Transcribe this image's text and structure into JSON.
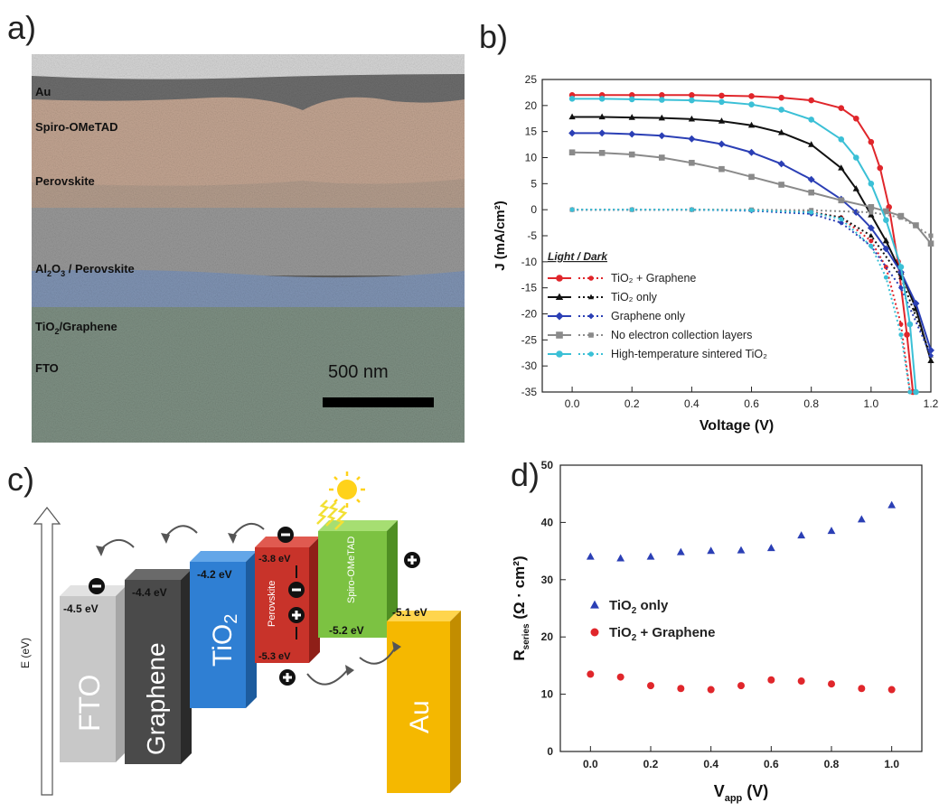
{
  "panels": {
    "a": {
      "label": "a)",
      "layers": [
        {
          "name": "Au"
        },
        {
          "name": "Spiro-OMeTAD"
        },
        {
          "name": "Perovskite"
        },
        {
          "name": "Al",
          "sub1": "2",
          "mid": "O",
          "sub2": "3",
          "rest": " / Perovskite"
        },
        {
          "name": "TiO",
          "sub1": "2",
          "rest": "/Graphene"
        },
        {
          "name": "FTO"
        }
      ],
      "scale_bar": "500 nm"
    },
    "b": {
      "label": "b)"
    },
    "c": {
      "label": "c)",
      "axis_label": "E (eV)",
      "blocks": [
        {
          "name": "FTO",
          "energy": "-4.5 eV",
          "color": "#c8c8c8"
        },
        {
          "name": "Graphene",
          "energy": "-4.4 eV",
          "color": "#4a4a4a"
        },
        {
          "name": "TiO",
          "sub": "2",
          "energy": "-4.2 eV",
          "color": "#2f7fd3"
        },
        {
          "name": "Perovskite",
          "energy_top": "-3.8 eV",
          "energy_bottom": "-5.3 eV",
          "color": "#c8332a"
        },
        {
          "name": "Spiro-OMeTAD",
          "energy": "-5.2 eV",
          "color": "#7cc242"
        },
        {
          "name": "Au",
          "energy": "-5.1 eV",
          "color": "#f5b800"
        }
      ]
    },
    "d": {
      "label": "d)"
    }
  },
  "chart_data": [
    {
      "type": "line",
      "panel": "b",
      "xlabel": "Voltage (V)",
      "ylabel": "J (mA/cm²)",
      "xlim": [
        -0.1,
        1.2
      ],
      "ylim": [
        -35,
        25
      ],
      "xticks": [
        "0.0",
        "0.2",
        "0.4",
        "0.6",
        "0.8",
        "1.0",
        "1.2"
      ],
      "yticks": [
        "25",
        "20",
        "15",
        "10",
        "5",
        "0",
        "-5",
        "-10",
        "-15",
        "-20",
        "-25",
        "-30",
        "-35"
      ],
      "legend_title": "Light / Dark",
      "legend_position": "bottom-left",
      "series": [
        {
          "name": "TiO₂ + Graphene",
          "color": "#e0262b",
          "marker": "circle",
          "light": [
            [
              0,
              22
            ],
            [
              0.1,
              22
            ],
            [
              0.2,
              22
            ],
            [
              0.3,
              22
            ],
            [
              0.4,
              22
            ],
            [
              0.5,
              21.9
            ],
            [
              0.6,
              21.8
            ],
            [
              0.7,
              21.5
            ],
            [
              0.8,
              21
            ],
            [
              0.9,
              19.5
            ],
            [
              0.95,
              17.5
            ],
            [
              1.0,
              13
            ],
            [
              1.03,
              8
            ],
            [
              1.06,
              0.5
            ],
            [
              1.09,
              -10
            ],
            [
              1.12,
              -24
            ],
            [
              1.14,
              -35
            ]
          ],
          "dark": [
            [
              0,
              0
            ],
            [
              0.2,
              0
            ],
            [
              0.4,
              0
            ],
            [
              0.6,
              -0.1
            ],
            [
              0.8,
              -0.4
            ],
            [
              0.9,
              -1.5
            ],
            [
              1.0,
              -6
            ],
            [
              1.05,
              -11
            ],
            [
              1.1,
              -22
            ],
            [
              1.13,
              -35
            ]
          ]
        },
        {
          "name": "TiO₂ only",
          "color": "#111111",
          "marker": "triangle",
          "light": [
            [
              0,
              17.8
            ],
            [
              0.1,
              17.8
            ],
            [
              0.2,
              17.7
            ],
            [
              0.3,
              17.6
            ],
            [
              0.4,
              17.4
            ],
            [
              0.5,
              17
            ],
            [
              0.6,
              16.2
            ],
            [
              0.7,
              14.8
            ],
            [
              0.8,
              12.5
            ],
            [
              0.9,
              8
            ],
            [
              0.95,
              4
            ],
            [
              1.0,
              -1
            ],
            [
              1.05,
              -6
            ],
            [
              1.1,
              -12
            ],
            [
              1.15,
              -19
            ],
            [
              1.2,
              -29
            ]
          ],
          "dark": [
            [
              0,
              0
            ],
            [
              0.2,
              0
            ],
            [
              0.4,
              0
            ],
            [
              0.6,
              -0.1
            ],
            [
              0.8,
              -0.5
            ],
            [
              0.9,
              -1.5
            ],
            [
              1.0,
              -5
            ],
            [
              1.1,
              -13
            ],
            [
              1.2,
              -28
            ]
          ]
        },
        {
          "name": "Graphene only",
          "color": "#2b3fb5",
          "marker": "diamond",
          "light": [
            [
              0,
              14.7
            ],
            [
              0.1,
              14.7
            ],
            [
              0.2,
              14.5
            ],
            [
              0.3,
              14.2
            ],
            [
              0.4,
              13.6
            ],
            [
              0.5,
              12.6
            ],
            [
              0.6,
              11
            ],
            [
              0.7,
              8.8
            ],
            [
              0.8,
              5.8
            ],
            [
              0.9,
              2
            ],
            [
              0.95,
              -0.5
            ],
            [
              1.0,
              -3.5
            ],
            [
              1.05,
              -7.5
            ],
            [
              1.1,
              -12
            ],
            [
              1.15,
              -18
            ],
            [
              1.2,
              -27
            ]
          ],
          "dark": [
            [
              0,
              0
            ],
            [
              0.2,
              0
            ],
            [
              0.4,
              0
            ],
            [
              0.6,
              -0.2
            ],
            [
              0.8,
              -0.8
            ],
            [
              0.9,
              -2.5
            ],
            [
              1.0,
              -7
            ],
            [
              1.1,
              -15
            ],
            [
              1.2,
              -28
            ]
          ]
        },
        {
          "name": "No electron collection layers",
          "color": "#8a8a8a",
          "marker": "square",
          "light": [
            [
              0,
              11
            ],
            [
              0.1,
              10.9
            ],
            [
              0.2,
              10.6
            ],
            [
              0.3,
              10
            ],
            [
              0.4,
              9
            ],
            [
              0.5,
              7.8
            ],
            [
              0.6,
              6.3
            ],
            [
              0.7,
              4.8
            ],
            [
              0.8,
              3.3
            ],
            [
              0.9,
              1.8
            ],
            [
              1.0,
              0.5
            ],
            [
              1.05,
              -0.3
            ],
            [
              1.1,
              -1.2
            ],
            [
              1.15,
              -3
            ],
            [
              1.2,
              -6.5
            ]
          ],
          "dark": [
            [
              0,
              0
            ],
            [
              0.2,
              0
            ],
            [
              0.4,
              0
            ],
            [
              0.6,
              0
            ],
            [
              0.8,
              -0.1
            ],
            [
              1.0,
              -0.5
            ],
            [
              1.1,
              -1.5
            ],
            [
              1.2,
              -5
            ]
          ]
        },
        {
          "name": "High-temperature sintered TiO₂",
          "color": "#3bc0d6",
          "marker": "circle",
          "light": [
            [
              0,
              21.3
            ],
            [
              0.1,
              21.3
            ],
            [
              0.2,
              21.2
            ],
            [
              0.3,
              21.1
            ],
            [
              0.4,
              21
            ],
            [
              0.5,
              20.7
            ],
            [
              0.6,
              20.2
            ],
            [
              0.7,
              19.2
            ],
            [
              0.8,
              17.3
            ],
            [
              0.9,
              13.5
            ],
            [
              0.95,
              10
            ],
            [
              1.0,
              5
            ],
            [
              1.05,
              -2
            ],
            [
              1.1,
              -11
            ],
            [
              1.13,
              -22
            ],
            [
              1.15,
              -35
            ]
          ],
          "dark": [
            [
              0,
              0
            ],
            [
              0.2,
              0
            ],
            [
              0.4,
              0
            ],
            [
              0.6,
              -0.1
            ],
            [
              0.8,
              -0.5
            ],
            [
              0.9,
              -1.8
            ],
            [
              1.0,
              -7
            ],
            [
              1.05,
              -13
            ],
            [
              1.1,
              -24
            ],
            [
              1.13,
              -35
            ]
          ]
        }
      ]
    },
    {
      "type": "scatter",
      "panel": "d",
      "xlabel": "V",
      "xlabel_sub": "app",
      "xlabel_unit": " (V)",
      "ylabel": "R",
      "ylabel_sub": "series",
      "ylabel_unit": " (Ω · cm²)",
      "xlim": [
        -0.1,
        1.1
      ],
      "ylim": [
        0,
        50
      ],
      "xticks": [
        "0.0",
        "0.2",
        "0.4",
        "0.6",
        "0.8",
        "1.0"
      ],
      "yticks": [
        "0",
        "10",
        "20",
        "30",
        "40",
        "50"
      ],
      "legend_position": "middle-left",
      "series": [
        {
          "name": "TiO",
          "sub": "2",
          "suffix": " only",
          "color": "#2b3fb5",
          "marker": "triangle",
          "x": [
            0,
            0.1,
            0.2,
            0.3,
            0.4,
            0.5,
            0.6,
            0.7,
            0.8,
            0.9,
            1.0
          ],
          "y": [
            34,
            33.7,
            34,
            34.8,
            35,
            35.1,
            35.5,
            37.7,
            38.5,
            40.5,
            43
          ]
        },
        {
          "name": "TiO",
          "sub": "2",
          "suffix": " + Graphene",
          "color": "#e0262b",
          "marker": "circle",
          "x": [
            0,
            0.1,
            0.2,
            0.3,
            0.4,
            0.5,
            0.6,
            0.7,
            0.8,
            0.9,
            1.0
          ],
          "y": [
            13.5,
            13,
            11.5,
            11,
            10.8,
            11.5,
            12.5,
            12.3,
            11.8,
            11,
            10.8
          ]
        }
      ]
    }
  ]
}
